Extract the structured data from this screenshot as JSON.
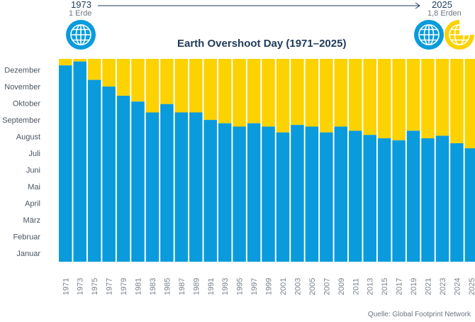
{
  "header": {
    "start_year": "1973",
    "start_sub": "1 Erde",
    "end_year": "2025",
    "end_sub": "1,8 Erden",
    "globe_icon_name": "globe-icon",
    "partial_globe_icon_name": "partial-globe-icon"
  },
  "chart_data": {
    "type": "bar",
    "title": "Earth Overshoot Day (1971–2025)",
    "source": "Quelle: Global Footprint Network",
    "categories": [
      "1971",
      "1973",
      "1975",
      "1977",
      "1979",
      "1981",
      "1983",
      "1985",
      "1987",
      "1989",
      "1991",
      "1993",
      "1995",
      "1997",
      "1999",
      "2001",
      "2003",
      "2005",
      "2007",
      "2009",
      "2011",
      "2013",
      "2015",
      "2017",
      "2019",
      "2021",
      "2023",
      "2024",
      "2025"
    ],
    "series": [
      {
        "color": "#0a9bdc",
        "values": [
          12.77,
          13.0,
          11.9,
          11.5,
          10.95,
          10.6,
          9.95,
          10.45,
          9.95,
          9.95,
          9.5,
          9.3,
          9.1,
          9.3,
          9.1,
          8.75,
          9.2,
          9.1,
          8.75,
          9.1,
          8.85,
          8.6,
          8.4,
          8.28,
          8.85,
          8.4,
          8.55,
          8.1,
          7.8
        ]
      }
    ],
    "remainder_color": "#fcd200",
    "y_ticks": [
      "Januar",
      "Februar",
      "März",
      "April",
      "Mai",
      "Juni",
      "Juli",
      "August",
      "September",
      "Oktober",
      "November",
      "Dezember"
    ],
    "ylim": [
      1,
      13.16
    ],
    "grid": false,
    "legend": "none"
  }
}
